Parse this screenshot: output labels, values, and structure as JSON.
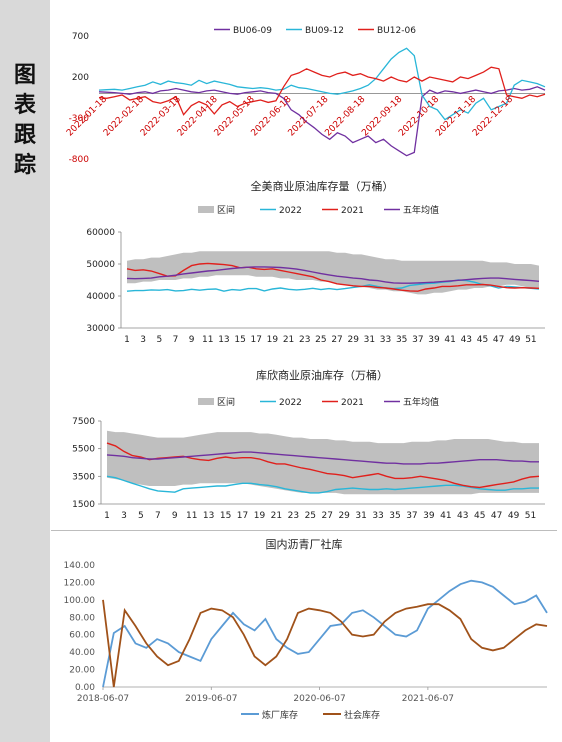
{
  "sidebar": {
    "title_chars": [
      "图",
      "表",
      "跟",
      "踪"
    ]
  },
  "charts": [
    {
      "type": "line",
      "title": "",
      "legend": [
        "BU06-09",
        "BU09-12",
        "BU12-06"
      ],
      "colors": {
        "BU06-09": "#7030a0",
        "BU09-12": "#29b6d8",
        "BU12-06": "#e0201c"
      },
      "ylim": [
        -800,
        700
      ],
      "y_ticks": [
        "700",
        "200",
        "-300",
        "-800"
      ],
      "x_ticks": [
        "2022-01-18",
        "2022-02-18",
        "2022-03-18",
        "2022-04-18",
        "2022-05-18",
        "2022-06-18",
        "2022-07-18",
        "2022-08-18",
        "2022-09-18",
        "2022-10-18",
        "2022-11-18",
        "2022-12-18"
      ],
      "x_label_color": "#cc0000",
      "series": [
        {
          "name": "BU06-09",
          "values": [
            20,
            15,
            10,
            0,
            -10,
            10,
            20,
            0,
            30,
            40,
            60,
            40,
            20,
            10,
            30,
            40,
            20,
            0,
            -10,
            10,
            20,
            30,
            10,
            0,
            -60,
            -200,
            -260,
            -350,
            -420,
            -500,
            -560,
            -480,
            -520,
            -600,
            -560,
            -520,
            -600,
            -560,
            -640,
            -700,
            -760,
            -720,
            -40,
            40,
            0,
            30,
            20,
            0,
            20,
            40,
            20,
            0,
            30,
            40,
            60,
            40,
            50,
            80,
            40
          ]
        },
        {
          "name": "BU09-12",
          "values": [
            40,
            45,
            50,
            40,
            60,
            80,
            100,
            140,
            110,
            150,
            130,
            120,
            100,
            160,
            120,
            150,
            130,
            110,
            80,
            70,
            60,
            70,
            60,
            40,
            50,
            100,
            70,
            60,
            40,
            20,
            0,
            -10,
            10,
            30,
            60,
            100,
            180,
            300,
            420,
            500,
            550,
            460,
            -20,
            -160,
            -200,
            -320,
            -260,
            -200,
            -240,
            -120,
            -60,
            -200,
            -160,
            -120,
            100,
            160,
            140,
            120,
            80
          ]
        },
        {
          "name": "BU12-06",
          "values": [
            -50,
            -60,
            -40,
            -20,
            -80,
            -60,
            -40,
            -100,
            -120,
            -90,
            -40,
            -260,
            -150,
            -100,
            -140,
            -250,
            -140,
            -100,
            -160,
            -120,
            -100,
            -80,
            -110,
            -90,
            80,
            220,
            250,
            300,
            260,
            220,
            200,
            240,
            260,
            220,
            240,
            200,
            180,
            150,
            200,
            160,
            140,
            200,
            150,
            200,
            180,
            160,
            140,
            200,
            180,
            220,
            260,
            320,
            300,
            -20,
            -40,
            -60,
            -20,
            -40,
            -10
          ]
        }
      ]
    },
    {
      "type": "line",
      "title": "全美商业原油库存量（万桶）",
      "legend": [
        "区间",
        "2022",
        "2021",
        "五年均值"
      ],
      "colors": {
        "区间": "#bfbfbf",
        "2022": "#29b6d8",
        "2021": "#e0201c",
        "五年均值": "#7030a0"
      },
      "ylim": [
        30000,
        60000
      ],
      "y_ticks": [
        "60000",
        "50000",
        "40000",
        "30000"
      ],
      "x_ticks": [
        "1",
        "3",
        "5",
        "7",
        "9",
        "11",
        "13",
        "15",
        "17",
        "19",
        "21",
        "23",
        "25",
        "27",
        "29",
        "31",
        "33",
        "35",
        "37",
        "39",
        "41",
        "43",
        "45",
        "47",
        "49",
        "51"
      ],
      "range_low": [
        44000,
        44000,
        44500,
        44500,
        45000,
        45000,
        45000,
        45500,
        45500,
        46000,
        46000,
        46500,
        46500,
        46500,
        46500,
        46500,
        46000,
        46000,
        46000,
        45500,
        45500,
        45000,
        45000,
        45000,
        44500,
        44500,
        44000,
        43500,
        43000,
        43000,
        42500,
        42000,
        42000,
        41500,
        41500,
        41000,
        40500,
        40500,
        41000,
        41000,
        41500,
        42000,
        42000,
        42500,
        42500,
        43000,
        43000,
        43500,
        43500,
        43000,
        42500,
        42500
      ],
      "range_high": [
        51000,
        51500,
        51500,
        52000,
        52000,
        52500,
        53000,
        53500,
        53500,
        54000,
        54000,
        54000,
        54000,
        54000,
        54000,
        54000,
        54000,
        54000,
        54000,
        54000,
        54000,
        54000,
        54000,
        54000,
        54000,
        54000,
        53500,
        53500,
        53000,
        53000,
        52500,
        52000,
        51500,
        51500,
        51000,
        51000,
        51000,
        51000,
        51000,
        51000,
        51000,
        51000,
        51000,
        51000,
        51000,
        50500,
        50500,
        50500,
        50000,
        50000,
        50000,
        49500
      ],
      "series": [
        {
          "name": "2022",
          "values": [
            41500,
            41700,
            41700,
            41900,
            41800,
            42000,
            41600,
            41700,
            42100,
            41800,
            42100,
            42200,
            41500,
            42000,
            41800,
            42300,
            42300,
            41600,
            42200,
            42500,
            42100,
            41900,
            42100,
            42400,
            42000,
            42300,
            42000,
            42300,
            42700,
            43000,
            43500,
            43000,
            42500,
            42300,
            42500,
            43300,
            43600,
            43900,
            44000,
            44300,
            44500,
            45000,
            44800,
            44300,
            43600,
            43200,
            42500,
            43000,
            42800,
            42600,
            42400,
            42200
          ]
        },
        {
          "name": "2021",
          "values": [
            48500,
            48000,
            48200,
            47800,
            47000,
            46200,
            46300,
            48000,
            49500,
            50000,
            50200,
            50000,
            49800,
            49500,
            48800,
            49000,
            48500,
            48300,
            48500,
            48000,
            47500,
            47000,
            46500,
            46000,
            45000,
            44500,
            43800,
            43500,
            43200,
            43000,
            43000,
            42700,
            42500,
            42200,
            41800,
            41600,
            41500,
            42200,
            42500,
            43000,
            43000,
            43200,
            43500,
            43500,
            43600,
            43400,
            43000,
            42600,
            42500,
            42600,
            42500,
            42400
          ]
        },
        {
          "name": "五年均值",
          "values": [
            45500,
            45400,
            45500,
            45600,
            46000,
            46200,
            46500,
            46900,
            47200,
            47500,
            47800,
            48000,
            48300,
            48600,
            48800,
            49000,
            49100,
            49100,
            49000,
            48900,
            48700,
            48400,
            48000,
            47500,
            47000,
            46600,
            46200,
            45900,
            45600,
            45400,
            45000,
            44800,
            44400,
            44100,
            44000,
            44000,
            44100,
            44200,
            44300,
            44500,
            44700,
            44900,
            45100,
            45300,
            45500,
            45600,
            45600,
            45400,
            45200,
            45000,
            44800,
            44600
          ]
        }
      ]
    },
    {
      "type": "line",
      "title": "库欣商业原油库存（万桶）",
      "legend": [
        "区间",
        "2022",
        "2021",
        "五年均值"
      ],
      "colors": {
        "区间": "#bfbfbf",
        "2022": "#29b6d8",
        "2021": "#e0201c",
        "五年均值": "#7030a0"
      },
      "ylim": [
        1500,
        7500
      ],
      "y_ticks": [
        "7500",
        "5500",
        "3500",
        "1500"
      ],
      "x_ticks": [
        "1",
        "3",
        "5",
        "7",
        "9",
        "11",
        "13",
        "15",
        "17",
        "19",
        "21",
        "23",
        "25",
        "27",
        "29",
        "31",
        "33",
        "35",
        "37",
        "39",
        "41",
        "43",
        "45",
        "47",
        "49",
        "51"
      ],
      "range_low": [
        3400,
        3300,
        3200,
        3000,
        2900,
        2800,
        2800,
        2800,
        2800,
        2900,
        2900,
        3000,
        3000,
        3000,
        3000,
        3000,
        3000,
        2900,
        2800,
        2700,
        2600,
        2500,
        2400,
        2300,
        2300,
        2300,
        2300,
        2300,
        2200,
        2200,
        2200,
        2200,
        2200,
        2200,
        2200,
        2200,
        2200,
        2200,
        2200,
        2200,
        2200,
        2200,
        2200,
        2200,
        2300,
        2300,
        2300,
        2300,
        2300,
        2300,
        2300,
        2300
      ],
      "range_high": [
        6800,
        6700,
        6700,
        6600,
        6500,
        6400,
        6300,
        6300,
        6300,
        6300,
        6400,
        6500,
        6600,
        6700,
        6700,
        6700,
        6700,
        6700,
        6600,
        6600,
        6500,
        6400,
        6300,
        6300,
        6200,
        6200,
        6200,
        6100,
        6100,
        6000,
        6000,
        6000,
        5900,
        5900,
        5900,
        5900,
        6000,
        6000,
        6000,
        6100,
        6100,
        6200,
        6200,
        6200,
        6200,
        6200,
        6100,
        6000,
        6000,
        5900,
        5900,
        5900
      ],
      "series": [
        {
          "name": "2022",
          "values": [
            3500,
            3400,
            3200,
            3000,
            2800,
            2600,
            2450,
            2400,
            2350,
            2600,
            2650,
            2700,
            2750,
            2800,
            2800,
            2900,
            3000,
            3000,
            2900,
            2850,
            2750,
            2600,
            2500,
            2400,
            2300,
            2300,
            2400,
            2550,
            2600,
            2650,
            2600,
            2550,
            2550,
            2600,
            2550,
            2600,
            2650,
            2700,
            2750,
            2800,
            2850,
            2850,
            2800,
            2700,
            2600,
            2550,
            2500,
            2500,
            2600,
            2600,
            2650,
            2650
          ]
        },
        {
          "name": "2021",
          "values": [
            5900,
            5700,
            5300,
            5000,
            4900,
            4700,
            4800,
            4850,
            4900,
            4950,
            4800,
            4700,
            4650,
            4800,
            4900,
            4800,
            4850,
            4850,
            4750,
            4550,
            4400,
            4400,
            4250,
            4100,
            4000,
            3850,
            3700,
            3650,
            3550,
            3400,
            3500,
            3600,
            3700,
            3500,
            3350,
            3350,
            3400,
            3500,
            3400,
            3300,
            3200,
            3000,
            2850,
            2750,
            2700,
            2800,
            2900,
            3000,
            3100,
            3300,
            3450,
            3500
          ]
        },
        {
          "name": "五年均值",
          "values": [
            5050,
            5000,
            4950,
            4850,
            4800,
            4750,
            4750,
            4800,
            4850,
            4900,
            4950,
            5000,
            5050,
            5100,
            5150,
            5200,
            5250,
            5250,
            5200,
            5150,
            5100,
            5050,
            5000,
            4950,
            4900,
            4850,
            4800,
            4750,
            4700,
            4650,
            4600,
            4550,
            4500,
            4450,
            4450,
            4400,
            4400,
            4400,
            4450,
            4450,
            4500,
            4550,
            4600,
            4650,
            4700,
            4700,
            4700,
            4650,
            4600,
            4600,
            4550,
            4550
          ]
        }
      ]
    },
    {
      "type": "line",
      "title": "国内沥青厂社库",
      "legend": [
        "炼厂库存",
        "社会库存"
      ],
      "colors": {
        "炼厂库存": "#5b9bd5",
        "社会库存": "#a0521a"
      },
      "ylim": [
        0,
        140
      ],
      "y_ticks": [
        "140.00",
        "120.00",
        "100.00",
        "80.00",
        "60.00",
        "40.00",
        "20.00",
        "0.00"
      ],
      "x_ticks": [
        "2018-06-07",
        "2019-06-07",
        "2020-06-07",
        "2021-06-07"
      ],
      "x": [
        0.0,
        0.1,
        0.2,
        0.3,
        0.4,
        0.5,
        0.6,
        0.7,
        0.8,
        0.9,
        1.0,
        1.1,
        1.2,
        1.3,
        1.4,
        1.5,
        1.6,
        1.7,
        1.8,
        1.9,
        2.0,
        2.1,
        2.2,
        2.3,
        2.4,
        2.5,
        2.6,
        2.7,
        2.8,
        2.9,
        3.0,
        3.1,
        3.2,
        3.3,
        3.4,
        3.5,
        3.6,
        3.7,
        3.8,
        3.9,
        4.0,
        4.1
      ],
      "series": [
        {
          "name": "炼厂库存",
          "values": [
            0,
            62,
            70,
            50,
            45,
            55,
            50,
            40,
            35,
            30,
            55,
            70,
            85,
            72,
            65,
            78,
            55,
            45,
            38,
            40,
            55,
            70,
            72,
            85,
            88,
            80,
            70,
            60,
            58,
            65,
            90,
            100,
            110,
            118,
            122,
            120,
            115,
            105,
            95,
            98,
            105,
            85
          ]
        },
        {
          "name": "社会库存",
          "values": [
            100,
            0,
            88,
            70,
            50,
            35,
            25,
            30,
            55,
            85,
            90,
            88,
            80,
            60,
            35,
            25,
            35,
            55,
            85,
            90,
            88,
            85,
            75,
            60,
            58,
            60,
            75,
            85,
            90,
            92,
            95,
            95,
            88,
            78,
            55,
            45,
            42,
            45,
            55,
            65,
            72,
            70
          ]
        }
      ]
    }
  ]
}
